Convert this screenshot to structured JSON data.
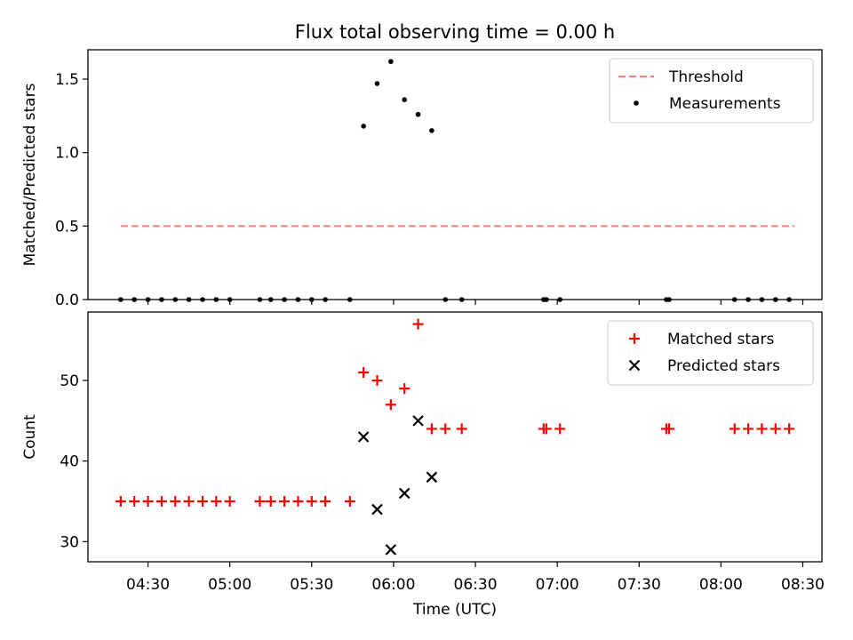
{
  "chart_data": {
    "title": "Flux total observing time = 0.00 h",
    "xlabel": "Time (UTC)",
    "x_ticks": [
      "04:30",
      "05:00",
      "05:30",
      "06:00",
      "06:30",
      "07:00",
      "07:30",
      "08:00",
      "08:30"
    ],
    "x_tick_minutes": [
      270,
      300,
      330,
      360,
      390,
      420,
      450,
      480,
      510
    ],
    "xlim_minutes": [
      248,
      517
    ],
    "panels": [
      {
        "type": "scatter",
        "ylabel": "Matched/Predicted stars",
        "ylim": [
          0,
          1.7
        ],
        "y_ticks": [
          0.0,
          0.5,
          1.0,
          1.5
        ],
        "y_tick_labels": [
          "0.0",
          "0.5",
          "1.0",
          "1.5"
        ],
        "legend_position": "top-right",
        "threshold": {
          "name": "Threshold",
          "value": 0.5,
          "x_range": [
            260,
            507
          ],
          "color": "#ff7f7f",
          "style": "dashed"
        },
        "series": [
          {
            "name": "Measurements",
            "marker": "dot",
            "color": "#000000",
            "x": [
              260,
              265,
              270,
              275,
              280,
              285,
              290,
              295,
              300,
              311,
              315,
              320,
              325,
              330,
              335,
              344,
              349,
              354,
              359,
              364,
              369,
              374,
              379,
              385,
              415,
              416,
              421,
              460,
              461,
              485,
              490,
              495,
              500,
              505
            ],
            "y": [
              0,
              0,
              0,
              0,
              0,
              0,
              0,
              0,
              0,
              0,
              0,
              0,
              0,
              0,
              0,
              0,
              1.18,
              1.47,
              1.62,
              1.36,
              1.26,
              1.15,
              0,
              0,
              0,
              0,
              0,
              0,
              0,
              0,
              0,
              0,
              0,
              0
            ]
          }
        ]
      },
      {
        "type": "scatter",
        "ylabel": "Count",
        "ylim": [
          27.5,
          58.5
        ],
        "y_ticks": [
          30,
          40,
          50
        ],
        "y_tick_labels": [
          "30",
          "40",
          "50"
        ],
        "legend_position": "top-right",
        "series": [
          {
            "name": "Matched stars",
            "marker": "plus",
            "color": "#ff0000",
            "x": [
              260,
              265,
              270,
              275,
              280,
              285,
              290,
              295,
              300,
              311,
              315,
              320,
              325,
              330,
              335,
              344,
              349,
              354,
              359,
              364,
              369,
              374,
              379,
              385,
              415,
              416,
              421,
              460,
              461,
              485,
              490,
              495,
              500,
              505
            ],
            "y": [
              35,
              35,
              35,
              35,
              35,
              35,
              35,
              35,
              35,
              35,
              35,
              35,
              35,
              35,
              35,
              35,
              51,
              50,
              47,
              49,
              57,
              44,
              44,
              44,
              44,
              44,
              44,
              44,
              44,
              44,
              44,
              44,
              44,
              44
            ]
          },
          {
            "name": "Predicted stars",
            "marker": "x",
            "color": "#000000",
            "x": [
              349,
              354,
              359,
              364,
              369,
              374
            ],
            "y": [
              43,
              34,
              29,
              36,
              45,
              38
            ]
          }
        ]
      }
    ]
  }
}
